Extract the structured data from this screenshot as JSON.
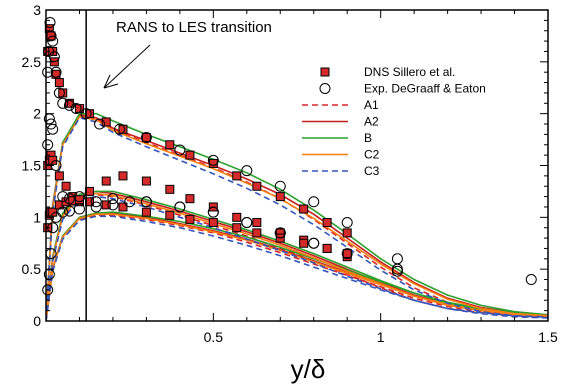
{
  "chart_data": {
    "type": "scatter",
    "xlabel": "y/δ",
    "ylabel": "",
    "xlim": [
      0,
      1.5
    ],
    "ylim": [
      0,
      3
    ],
    "xticks": [
      "0.5",
      "1",
      "1.5"
    ],
    "xtick_values": [
      0.5,
      1,
      1.5
    ],
    "yticks": [
      "0",
      "0.5",
      "1",
      "1.5",
      "2",
      "2.5",
      "3"
    ],
    "ytick_values": [
      0,
      0.5,
      1,
      1.5,
      2,
      2.5,
      3
    ],
    "grid": false,
    "legend_position": "upper-right",
    "annotation": {
      "text": "RANS to LES transition",
      "x_line": 0.12
    },
    "series": [
      {
        "name": "DNS Sillero et al.",
        "kind": "marker",
        "marker": "square",
        "color": "#d42a2a",
        "groups": [
          {
            "x": [
              0.005,
              0.01,
              0.015,
              0.02,
              0.025,
              0.03,
              0.04,
              0.05,
              0.07,
              0.1,
              0.13,
              0.18,
              0.23,
              0.3,
              0.37,
              0.43,
              0.5,
              0.57,
              0.63,
              0.7,
              0.77,
              0.84,
              0.9
            ],
            "y": [
              2.6,
              2.82,
              2.75,
              2.6,
              2.5,
              2.38,
              2.3,
              2.2,
              2.1,
              2.05,
              2.0,
              1.92,
              1.85,
              1.77,
              1.7,
              1.6,
              1.52,
              1.4,
              1.3,
              1.2,
              1.08,
              0.95,
              0.85
            ]
          },
          {
            "x": [
              0.005,
              0.01,
              0.015,
              0.02,
              0.04,
              0.06,
              0.08,
              0.1,
              0.13,
              0.18,
              0.23,
              0.3,
              0.37,
              0.43,
              0.5,
              0.57,
              0.63,
              0.7,
              0.77,
              0.84,
              0.9
            ],
            "y": [
              1.5,
              1.55,
              1.6,
              1.55,
              1.4,
              1.3,
              1.2,
              1.15,
              1.25,
              1.35,
              1.4,
              1.35,
              1.27,
              1.18,
              1.1,
              1.0,
              0.95,
              0.85,
              0.78,
              0.7,
              0.62
            ]
          },
          {
            "x": [
              0.005,
              0.01,
              0.015,
              0.02,
              0.04,
              0.06,
              0.08,
              0.1,
              0.13,
              0.18,
              0.23,
              0.3,
              0.37,
              0.43,
              0.5,
              0.57,
              0.63,
              0.7,
              0.77,
              0.84,
              0.9
            ],
            "y": [
              0.9,
              1.02,
              1.05,
              1.05,
              1.12,
              1.15,
              1.16,
              1.17,
              1.15,
              1.12,
              1.1,
              1.05,
              1.02,
              0.98,
              0.95,
              0.9,
              0.85,
              0.8,
              0.75,
              0.7,
              0.65
            ]
          }
        ]
      },
      {
        "name": "Exp. DeGraaff & Eaton",
        "kind": "marker",
        "marker": "circle",
        "color": "#000000",
        "groups": [
          {
            "x": [
              0.005,
              0.008,
              0.012,
              0.015,
              0.02,
              0.025,
              0.03,
              0.04,
              0.05,
              0.07,
              0.09,
              0.12,
              0.16,
              0.22,
              0.3,
              0.4,
              0.5,
              0.6,
              0.7,
              0.8,
              0.9,
              1.05
            ],
            "y": [
              2.4,
              2.6,
              2.88,
              2.75,
              2.7,
              2.55,
              2.4,
              2.2,
              2.1,
              2.08,
              2.05,
              2.0,
              1.9,
              1.85,
              1.77,
              1.65,
              1.55,
              1.45,
              1.3,
              1.15,
              0.95,
              0.6
            ]
          },
          {
            "x": [
              0.005,
              0.01,
              0.015,
              0.02,
              0.03,
              0.05,
              0.07,
              0.1,
              0.15,
              0.2,
              0.3,
              0.4,
              0.5,
              0.6,
              0.7,
              0.8,
              1.05
            ],
            "y": [
              1.7,
              1.95,
              1.9,
              1.85,
              1.5,
              1.2,
              1.18,
              1.2,
              1.15,
              1.18,
              1.15,
              1.1,
              1.05,
              0.95,
              0.85,
              0.75,
              0.5
            ]
          },
          {
            "x": [
              0.005,
              0.01,
              0.015,
              0.02,
              0.03,
              0.05,
              0.07,
              0.1,
              0.15,
              0.2,
              0.25,
              0.3,
              0.4,
              0.5,
              0.6,
              0.7,
              0.8,
              0.9,
              1.05,
              1.45
            ],
            "y": [
              0.3,
              0.45,
              0.65,
              0.9,
              1.0,
              1.05,
              1.06,
              1.08,
              1.1,
              1.12,
              1.15,
              1.15,
              1.1,
              1.05,
              0.95,
              0.85,
              0.75,
              0.65,
              0.48,
              0.4
            ]
          }
        ]
      },
      {
        "name": "A1",
        "kind": "line",
        "color": "#d62728",
        "dash": true,
        "groups": [
          {
            "x": [
              0,
              0.02,
              0.05,
              0.1,
              0.15,
              0.2,
              0.3,
              0.4,
              0.5,
              0.6,
              0.7,
              0.8,
              0.9,
              1.0,
              1.1,
              1.2,
              1.3,
              1.4,
              1.5
            ],
            "y": [
              0,
              1.1,
              1.7,
              1.98,
              1.95,
              1.85,
              1.72,
              1.6,
              1.48,
              1.34,
              1.18,
              0.98,
              0.75,
              0.52,
              0.32,
              0.18,
              0.1,
              0.06,
              0.04
            ]
          },
          {
            "x": [
              0,
              0.02,
              0.05,
              0.1,
              0.15,
              0.2,
              0.3,
              0.4,
              0.5,
              0.6,
              0.7,
              0.8,
              0.9,
              1.0,
              1.1,
              1.2,
              1.3,
              1.4,
              1.5
            ],
            "y": [
              0,
              0.6,
              1.0,
              1.2,
              1.22,
              1.2,
              1.12,
              1.02,
              0.92,
              0.82,
              0.7,
              0.58,
              0.45,
              0.32,
              0.2,
              0.12,
              0.08,
              0.05,
              0.04
            ]
          },
          {
            "x": [
              0,
              0.02,
              0.05,
              0.1,
              0.15,
              0.2,
              0.3,
              0.4,
              0.5,
              0.6,
              0.7,
              0.8,
              0.9,
              1.0,
              1.1,
              1.2,
              1.3,
              1.4,
              1.5
            ],
            "y": [
              0,
              0.5,
              0.8,
              0.98,
              1.02,
              1.02,
              0.98,
              0.92,
              0.85,
              0.76,
              0.66,
              0.55,
              0.44,
              0.33,
              0.22,
              0.14,
              0.09,
              0.06,
              0.05
            ]
          }
        ]
      },
      {
        "name": "A2",
        "kind": "line",
        "color": "#c81e1e",
        "dash": false,
        "groups": [
          {
            "x": [
              0,
              0.02,
              0.05,
              0.1,
              0.15,
              0.2,
              0.3,
              0.4,
              0.5,
              0.6,
              0.7,
              0.8,
              0.9,
              1.0,
              1.1,
              1.2,
              1.3,
              1.4,
              1.5
            ],
            "y": [
              0,
              1.12,
              1.72,
              1.99,
              1.96,
              1.86,
              1.74,
              1.62,
              1.5,
              1.37,
              1.22,
              1.03,
              0.8,
              0.57,
              0.37,
              0.22,
              0.13,
              0.08,
              0.05
            ]
          },
          {
            "x": [
              0,
              0.02,
              0.05,
              0.1,
              0.15,
              0.2,
              0.3,
              0.4,
              0.5,
              0.6,
              0.7,
              0.8,
              0.9,
              1.0,
              1.1,
              1.2,
              1.3,
              1.4,
              1.5
            ],
            "y": [
              0,
              0.62,
              1.02,
              1.22,
              1.25,
              1.23,
              1.15,
              1.06,
              0.96,
              0.86,
              0.75,
              0.63,
              0.5,
              0.37,
              0.25,
              0.16,
              0.1,
              0.07,
              0.05
            ]
          },
          {
            "x": [
              0,
              0.02,
              0.05,
              0.1,
              0.15,
              0.2,
              0.3,
              0.4,
              0.5,
              0.6,
              0.7,
              0.8,
              0.9,
              1.0,
              1.1,
              1.2,
              1.3,
              1.4,
              1.5
            ],
            "y": [
              0,
              0.51,
              0.82,
              1.0,
              1.04,
              1.04,
              1.0,
              0.94,
              0.87,
              0.79,
              0.69,
              0.58,
              0.47,
              0.36,
              0.25,
              0.16,
              0.11,
              0.07,
              0.06
            ]
          }
        ]
      },
      {
        "name": "B",
        "kind": "line",
        "color": "#2ca02c",
        "dash": false,
        "groups": [
          {
            "x": [
              0,
              0.02,
              0.05,
              0.1,
              0.15,
              0.2,
              0.3,
              0.4,
              0.5,
              0.6,
              0.7,
              0.8,
              0.9,
              1.0,
              1.1,
              1.2,
              1.3,
              1.4,
              1.5
            ],
            "y": [
              0,
              1.1,
              1.72,
              2.0,
              2.0,
              1.93,
              1.8,
              1.68,
              1.56,
              1.43,
              1.27,
              1.07,
              0.84,
              0.6,
              0.4,
              0.25,
              0.15,
              0.09,
              0.06
            ]
          },
          {
            "x": [
              0,
              0.02,
              0.05,
              0.1,
              0.15,
              0.2,
              0.3,
              0.4,
              0.5,
              0.6,
              0.7,
              0.8,
              0.9,
              1.0,
              1.1,
              1.2,
              1.3,
              1.4,
              1.5
            ],
            "y": [
              0,
              0.62,
              1.04,
              1.22,
              1.25,
              1.25,
              1.17,
              1.08,
              0.98,
              0.88,
              0.77,
              0.65,
              0.52,
              0.39,
              0.27,
              0.17,
              0.11,
              0.07,
              0.05
            ]
          },
          {
            "x": [
              0,
              0.02,
              0.05,
              0.1,
              0.15,
              0.2,
              0.3,
              0.4,
              0.5,
              0.6,
              0.7,
              0.8,
              0.9,
              1.0,
              1.1,
              1.2,
              1.3,
              1.4,
              1.5
            ],
            "y": [
              0,
              0.5,
              0.82,
              1.0,
              1.04,
              1.05,
              1.01,
              0.96,
              0.89,
              0.81,
              0.71,
              0.6,
              0.49,
              0.38,
              0.27,
              0.18,
              0.12,
              0.08,
              0.06
            ]
          }
        ]
      },
      {
        "name": "C2",
        "kind": "line",
        "color": "#ff7f0e",
        "dash": false,
        "groups": [
          {
            "x": [
              0,
              0.02,
              0.05,
              0.1,
              0.15,
              0.2,
              0.3,
              0.4,
              0.5,
              0.6,
              0.7,
              0.8,
              0.9,
              1.0,
              1.1,
              1.2,
              1.3,
              1.4,
              1.5
            ],
            "y": [
              0,
              1.08,
              1.7,
              1.97,
              1.94,
              1.84,
              1.71,
              1.59,
              1.47,
              1.33,
              1.18,
              0.99,
              0.77,
              0.55,
              0.36,
              0.21,
              0.12,
              0.07,
              0.05
            ]
          },
          {
            "x": [
              0,
              0.02,
              0.05,
              0.1,
              0.15,
              0.2,
              0.3,
              0.4,
              0.5,
              0.6,
              0.7,
              0.8,
              0.9,
              1.0,
              1.1,
              1.2,
              1.3,
              1.4,
              1.5
            ],
            "y": [
              0,
              0.6,
              1.01,
              1.2,
              1.23,
              1.21,
              1.13,
              1.04,
              0.94,
              0.84,
              0.73,
              0.61,
              0.48,
              0.36,
              0.24,
              0.15,
              0.1,
              0.06,
              0.05
            ]
          },
          {
            "x": [
              0,
              0.02,
              0.05,
              0.1,
              0.15,
              0.2,
              0.3,
              0.4,
              0.5,
              0.6,
              0.7,
              0.8,
              0.9,
              1.0,
              1.1,
              1.2,
              1.3,
              1.4,
              1.5
            ],
            "y": [
              0,
              0.5,
              0.81,
              0.99,
              1.03,
              1.03,
              0.99,
              0.93,
              0.86,
              0.78,
              0.68,
              0.57,
              0.46,
              0.35,
              0.24,
              0.16,
              0.1,
              0.07,
              0.05
            ]
          }
        ]
      },
      {
        "name": "C3",
        "kind": "line",
        "color": "#3355bb",
        "dash": true,
        "groups": [
          {
            "x": [
              0,
              0.02,
              0.05,
              0.1,
              0.15,
              0.2,
              0.3,
              0.4,
              0.5,
              0.6,
              0.7,
              0.8,
              0.9,
              1.0,
              1.1,
              1.2,
              1.3,
              1.4,
              1.5
            ],
            "y": [
              0,
              1.05,
              1.68,
              1.96,
              1.92,
              1.82,
              1.68,
              1.55,
              1.42,
              1.28,
              1.12,
              0.93,
              0.71,
              0.49,
              0.3,
              0.17,
              0.09,
              0.05,
              0.03
            ]
          },
          {
            "x": [
              0,
              0.02,
              0.05,
              0.1,
              0.15,
              0.2,
              0.3,
              0.4,
              0.5,
              0.6,
              0.7,
              0.8,
              0.9,
              1.0,
              1.1,
              1.2,
              1.3,
              1.4,
              1.5
            ],
            "y": [
              0,
              0.58,
              0.98,
              1.17,
              1.2,
              1.18,
              1.1,
              1.0,
              0.9,
              0.79,
              0.68,
              0.56,
              0.43,
              0.31,
              0.2,
              0.12,
              0.07,
              0.04,
              0.03
            ]
          },
          {
            "x": [
              0,
              0.02,
              0.05,
              0.1,
              0.15,
              0.2,
              0.3,
              0.4,
              0.5,
              0.6,
              0.7,
              0.8,
              0.9,
              1.0,
              1.1,
              1.2,
              1.3,
              1.4,
              1.5
            ],
            "y": [
              0,
              0.48,
              0.79,
              0.97,
              1.01,
              1.01,
              0.96,
              0.9,
              0.82,
              0.73,
              0.63,
              0.52,
              0.41,
              0.3,
              0.2,
              0.12,
              0.08,
              0.05,
              0.04
            ]
          }
        ]
      }
    ]
  }
}
